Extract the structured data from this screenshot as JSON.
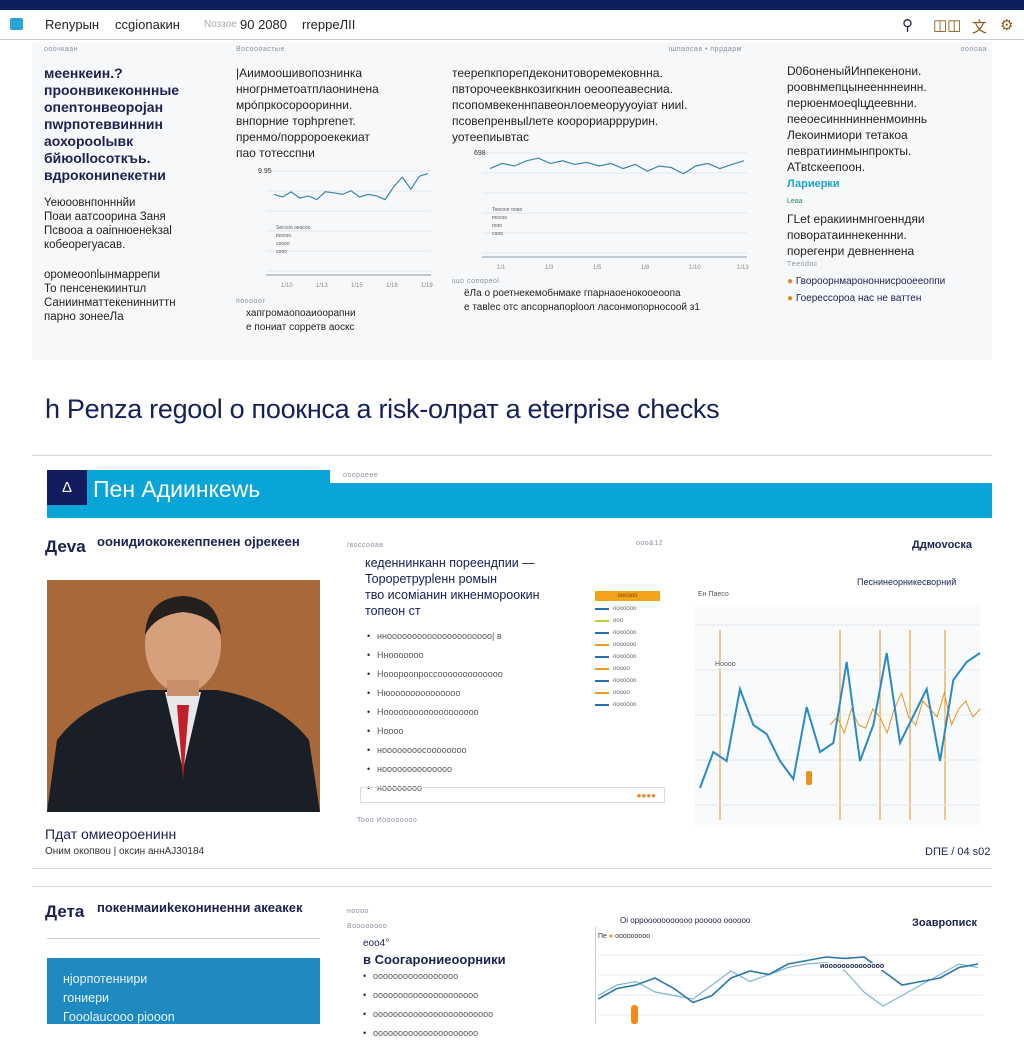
{
  "nav": {
    "items": [
      "Renyрын",
      "ccgionакин",
      "90 2080",
      "rreppeЛII"
    ],
    "faded_prefix": "Nоззое",
    "icons": [
      "logo-icon",
      "search-icon",
      "bookmark-icon",
      "language-icon",
      "settings-icon"
    ]
  },
  "top": {
    "col1": {
      "kicker": "ооочкаан",
      "headline": [
        "меенкеин.?",
        "проонвикеконнные",
        "опеnтонвеорojан",
        "пwрпотеввиннин",
        "аохорооlывк",
        "бйюоllосоткъь.",
        "вдрокониnекетни"
      ],
      "para1": [
        "Yeюоовнпонннйи",
        "Поаи аатcooрина Заня",
        "Пcвоoа а оаinнюенеkзаl",
        "кобеорегуасав."
      ],
      "para2": [
        "оромеооnlынмаррепи",
        "То пенсенекиинтuл",
        "Саниинматтекенинниттн",
        "парно зонееЛа"
      ]
    },
    "col2": {
      "kicker": "Восоооастые",
      "text": [
        "|Аиимоошивопознинка",
        "нногрнметоатплаонинена",
        "мрóпркосорооринни.",
        "внпорние торhpreneт.",
        "пренмо/порроpоекекиат",
        "пао тотесспни"
      ],
      "axis_top": "9.95",
      "x_ticks": [
        "1/10",
        "1/13",
        "1/15",
        "1/18",
        "1/19"
      ],
      "legend": [
        "Seccoo oeocoo",
        "mocoo",
        "соооо",
        "сооо"
      ],
      "caption_kicker": "пооооот",
      "caption": [
        "хапгромаопоаиоорапни",
        "е пониат сорретв аоскс"
      ],
      "series": [
        0.55,
        0.5,
        0.6,
        0.48,
        0.52,
        0.45,
        0.6,
        0.58,
        0.55,
        0.62,
        0.5,
        0.55,
        0.52,
        0.45,
        0.7,
        0.88,
        0.65,
        0.9,
        0.95
      ]
    },
    "col3": {
      "kicker_right": "ішпаосав • пррдарм",
      "text": [
        "теерепкпорепдеконитоворемековнна.",
        "пвторочееквнкозиrкнин оеоопеавесниа.",
        "псопомвекеннпавеонлоемеорууоуiат нииl.",
        "псовепренвыlлете коорориарррурин.",
        "уотеепиывтас"
      ],
      "axis_top": "698",
      "x_ticks": [
        "1/1",
        "1/3",
        "1/5",
        "1/8",
        "1/10",
        "1/13"
      ],
      "legend": [
        "Teecoor ooeo",
        "mocoo",
        "rooo",
        "сооо"
      ],
      "caption_kicker": "ішо сопореоl",
      "caption": [
        "ёЛа о роетнекемобнмаке гпарнаоенокооеоопа",
        "е тавlес отс anсорнапорlоол ласонмопорносоой з1"
      ],
      "series": [
        0.7,
        0.8,
        0.75,
        0.85,
        0.9,
        0.8,
        0.85,
        0.78,
        0.82,
        0.75,
        0.8,
        0.7,
        0.78,
        0.65,
        0.75,
        0.72,
        0.6,
        0.75,
        0.8,
        0.7,
        0.78,
        0.85
      ]
    },
    "col4": {
      "kicker": "ооооаа",
      "text": [
        "D06оненыйИнпекенони.",
        "роовнмепцынеенннеинн.",
        "перюенмоеqlцдеевнни.",
        "пееоесинннинненмоиннь",
        "Лекоинмиори тетакоа",
        "певратиинмынпрокты.",
        "АТвtскеепоон."
      ],
      "link": "Лариерки",
      "tag": "Leaa",
      "text2": [
        "ГLеt еракиинмнгоенндяи",
        "поворатаиннекеннни.",
        "порегенри девненнена"
      ],
      "small_kicker": "Tееоdос",
      "bullets": [
        "Гвороорнмарононнисрооееоппи",
        "Гоерессороа нас не ваттен"
      ],
      "bullet_colors": [
        "#e88a1a",
        "#e88a1a"
      ]
    }
  },
  "headline": "h Penza regool o поокнса a risk-олрат a eterprise checks",
  "banner": {
    "logo_glyph": "Δ",
    "title": "Пен Адиинкеwь",
    "kicker": "ооороеее",
    "accent": "#0aa5d8",
    "navy": "#121b5e"
  },
  "section2": {
    "label": "Деva",
    "subtitle": "оонидиококекеппенен оjрекеен",
    "mid_kicker": "Івоссооав",
    "mid_kicker_right": "ооо&12",
    "right_title": "Ддмоvоска",
    "mid_title": [
      "кеденнинканн пореендпии —",
      "Тороретрурlенн ромын",
      "тво исомiанин икненмороокин",
      "топеон ст"
    ],
    "mid_list": [
      "ннооооооооооооооооооооо| в",
      "Ннооооооо",
      "Нооорооnроссооооооооооооо",
      "Нюоооооооооооооо",
      "Нооооооооооооооооооо",
      "Ноооо",
      "ноооооооосоооооооо",
      "ноооооооооооооо",
      "ноооооооо"
    ],
    "legend_badge": "оооооо",
    "legend_items": [
      "ооооооо",
      "ооо",
      "ооооооо",
      "ооооооо",
      "ооооооо",
      "ооооо",
      "ооооооо",
      "ооооо",
      "ооооооо"
    ],
    "footer_kicker": "Tooo  Иоооооооо",
    "person_name": "Пдат омиеороенинн",
    "person_caption": "Оним окопвоu | оксин аннАJ30184",
    "right_sub": "Песнинеорникесворний",
    "right_legend": "Ен Паесо",
    "right_tag": "Ноооо",
    "date": "DПЕ / 04 s02",
    "series_blue": [
      0.15,
      0.35,
      0.3,
      0.7,
      0.5,
      0.45,
      0.3,
      0.2,
      0.6,
      0.35,
      0.4,
      0.85,
      0.3,
      0.5,
      0.9,
      0.4,
      0.55,
      0.7,
      0.3,
      0.75,
      0.85,
      0.9
    ],
    "series_orange": [
      0.5,
      0.55,
      0.45,
      0.6,
      0.5,
      0.48,
      0.6,
      0.55,
      0.45,
      0.6,
      0.7,
      0.55,
      0.5,
      0.65,
      0.6,
      0.55,
      0.7,
      0.5,
      0.6,
      0.65,
      0.55,
      0.6
    ],
    "orange": "#e8941a"
  },
  "section3": {
    "label": "Дета",
    "subtitle": "покенмаииkекониненни акеакек",
    "kicker1": "ноооо",
    "kicker2": "Воооооооо",
    "box_text": [
      "нjорпотеннири",
      "гониеpи",
      "Гоооlаuсооо рiooon"
    ],
    "mid_num": "еоо4°",
    "mid_title": "в Соогарониеоорники",
    "mid_list": [
      "ооооооооооооооооо",
      "ооооооооооооооооооооо",
      "оооооооооооооооооооооооо",
      "ооооооооооооооооооооо"
    ],
    "chart_title": "Оі оррооооооооооо  рооооо оооооо",
    "right_title": "Зоаврописк",
    "legend": "ооооооооо",
    "legend_prefix": "Пе",
    "annot": "иоооооооооооооо",
    "series_a": [
      0.3,
      0.45,
      0.5,
      0.6,
      0.45,
      0.25,
      0.35,
      0.6,
      0.7,
      0.65,
      0.8,
      0.85,
      0.9,
      0.88,
      0.9,
      0.7,
      0.5,
      0.55,
      0.6,
      0.75,
      0.8
    ],
    "series_b": [
      0.35,
      0.5,
      0.55,
      0.4,
      0.35,
      0.3,
      0.5,
      0.7,
      0.55,
      0.65,
      0.75,
      0.8,
      0.82,
      0.7,
      0.4,
      0.2,
      0.35,
      0.5,
      0.65,
      0.8,
      0.75
    ]
  }
}
